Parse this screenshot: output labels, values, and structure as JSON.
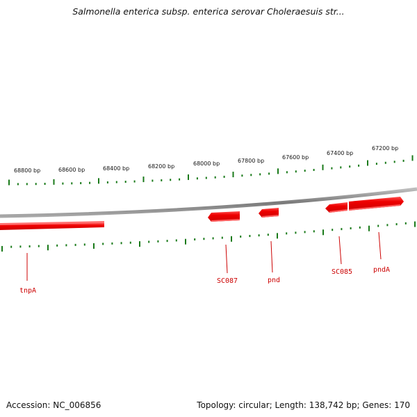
{
  "title": "Salmonella enterica subsp. enterica serovar Choleraesuis str...",
  "scale_labels": [
    "68800 bp",
    "68600 bp",
    "68400 bp",
    "68200 bp",
    "68000 bp",
    "67800 bp",
    "67600 bp",
    "67400 bp",
    "67200 bp"
  ],
  "genes": [
    {
      "label": "tnpA",
      "strand": "forward"
    },
    {
      "label": "SC087",
      "strand": "reverse"
    },
    {
      "label": "pnd",
      "strand": "reverse"
    },
    {
      "label": "SC085",
      "strand": "reverse"
    },
    {
      "label": "pndA",
      "strand": "forward"
    }
  ],
  "footer": {
    "accession": "Accession: NC_006856",
    "topology": "Topology: circular; Length: 138,742 bp; Genes: 170"
  },
  "colors": {
    "gene": "#ff0000",
    "gene_label": "#cc0000",
    "tick": "#1a7a1a",
    "backbone": "#7f7f7f"
  }
}
